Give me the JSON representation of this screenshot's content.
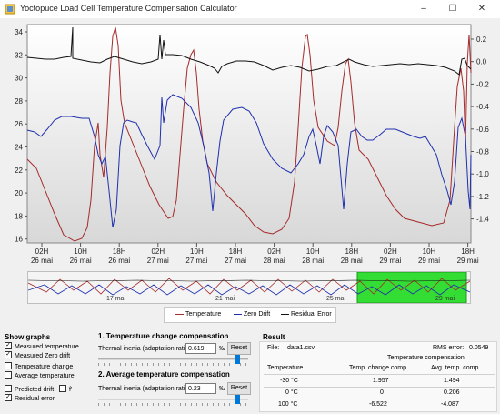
{
  "window": {
    "title": "Yoctopuce Load Cell Temperature Compensation Calculator",
    "minimize": "–",
    "maximize": "☐",
    "close": "✕"
  },
  "chart": {
    "left_axis_ticks": [
      "34",
      "32",
      "30",
      "28",
      "26",
      "24",
      "22",
      "20",
      "18",
      "16"
    ],
    "right_axis_ticks": [
      "0.2",
      "0.0",
      "-0.2",
      "-0.4",
      "-0.6",
      "-0.8",
      "-1.0",
      "-1.2",
      "-1.4"
    ],
    "x_ticks": [
      {
        "t": "02H",
        "d": "26 mai"
      },
      {
        "t": "10H",
        "d": "26 mai"
      },
      {
        "t": "18H",
        "d": "26 mai"
      },
      {
        "t": "02H",
        "d": "27 mai"
      },
      {
        "t": "10H",
        "d": "27 mai"
      },
      {
        "t": "18H",
        "d": "27 mai"
      },
      {
        "t": "02H",
        "d": "28 mai"
      },
      {
        "t": "10H",
        "d": "28 mai"
      },
      {
        "t": "18H",
        "d": "28 mai"
      },
      {
        "t": "02H",
        "d": "29 mai"
      },
      {
        "t": "10H",
        "d": "29 mai"
      },
      {
        "t": "18H",
        "d": "29 mai"
      }
    ],
    "colors": {
      "temperature": "#a52a2a",
      "zero_drift": "#1f2fae",
      "residual": "#111111",
      "highlight": "#33dd33"
    }
  },
  "overview": {
    "labels": [
      "17 mai",
      "21 mai",
      "25 mai",
      "29 mai"
    ]
  },
  "legend": {
    "temperature": "Temperature",
    "zero_drift": "Zero Drift",
    "residual": "Residual Error"
  },
  "show_graphs": {
    "title": "Show graphs",
    "items": [
      {
        "label": "Measured temperature",
        "checked": "✓"
      },
      {
        "label": "Measured Zero drift",
        "checked": "✓"
      },
      {
        "label": "Temperature change",
        "checked": ""
      },
      {
        "label": "Average temperature",
        "checked": ""
      },
      {
        "label": "Predicted drift",
        "checked": ""
      },
      {
        "label": "Residual error",
        "checked": "✓"
      }
    ],
    "extra_label": "f'"
  },
  "temp_change": {
    "title": "1. Temperature change compensation",
    "inertia_label": "Thermal inertia (adaptation ratio):",
    "value": "0.619",
    "unit": "‰",
    "reset": "Reset",
    "level": 0.93
  },
  "avg_temp": {
    "title": "2. Average temperature compensation",
    "inertia_label": "Thermal inertia (adaptation ratio):",
    "value": "0.23",
    "unit": "‰",
    "reset": "Reset",
    "level": 0.93
  },
  "result": {
    "title": "Result",
    "file_label": "File:",
    "file": "data1.csv",
    "rms_label": "RMS error:",
    "rms": "0.0549",
    "comp_header": "Temperature compensation",
    "col_temp": "Temperature",
    "col_change": "Temp. change comp.",
    "col_avg": "Avg. temp. comp",
    "rows": [
      {
        "temp": "-30 °C",
        "change": "1.957",
        "avg": "1.494"
      },
      {
        "temp": "0 °C",
        "change": "0",
        "avg": "0.206"
      },
      {
        "temp": "100 °C",
        "change": "-6.522",
        "avg": "-4.087"
      }
    ]
  }
}
